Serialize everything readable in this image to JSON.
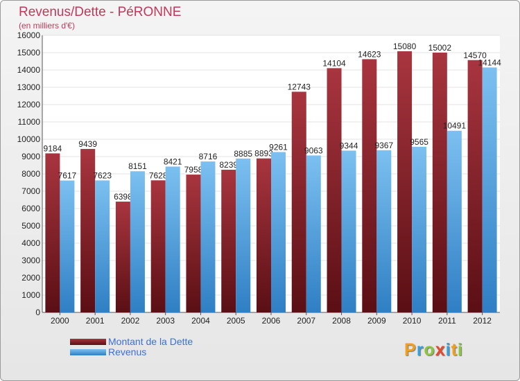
{
  "chart_data": {
    "type": "bar",
    "title": "Revenus/Dette - PéRONNE",
    "subtitle": "(en milliers d'€)",
    "categories": [
      "2000",
      "2001",
      "2002",
      "2003",
      "2004",
      "2005",
      "2006",
      "2007",
      "2008",
      "2009",
      "2010",
      "2011",
      "2012"
    ],
    "series": [
      {
        "name": "Montant de la Dette",
        "color": "#7a1f26",
        "values": [
          9184,
          9439,
          6398,
          7628,
          7958,
          8239,
          8893,
          12743,
          14104,
          14623,
          15080,
          15002,
          14570
        ],
        "labels": [
          "9184",
          "9439",
          "6398",
          "7628",
          "7958",
          "8239",
          "8893",
          "12743",
          "14104",
          "14623",
          "15080",
          "15002",
          "14570"
        ]
      },
      {
        "name": "Revenus",
        "color": "#4a9de0",
        "values": [
          7617,
          7623,
          8151,
          8421,
          8716,
          8885,
          9261,
          9063,
          9344,
          9367,
          9565,
          10491,
          14144
        ],
        "labels": [
          "7617",
          "7623",
          "8151",
          "8421",
          "8716",
          "8885",
          "9261",
          "9063",
          "9344",
          "9367",
          "9565",
          "10491",
          "14144"
        ]
      }
    ],
    "ylim": [
      0,
      16000
    ],
    "yticks": [
      "0",
      "1000",
      "2000",
      "3000",
      "4000",
      "5000",
      "6000",
      "7000",
      "8000",
      "9000",
      "10000",
      "11000",
      "12000",
      "13000",
      "14000",
      "15000",
      "16000"
    ],
    "grid": true,
    "legend": "bottom-left"
  },
  "legend": {
    "items": [
      "Montant de la Dette",
      "Revenus"
    ]
  },
  "logo": {
    "letters": [
      "P",
      "r",
      "o",
      "x",
      "i",
      "t",
      "i"
    ],
    "colors": [
      "#f0a020",
      "#3aa0d8",
      "#8cc63e",
      "#e64a2e",
      "#3aa0d8",
      "#f0a020",
      "#8cc63e"
    ]
  }
}
